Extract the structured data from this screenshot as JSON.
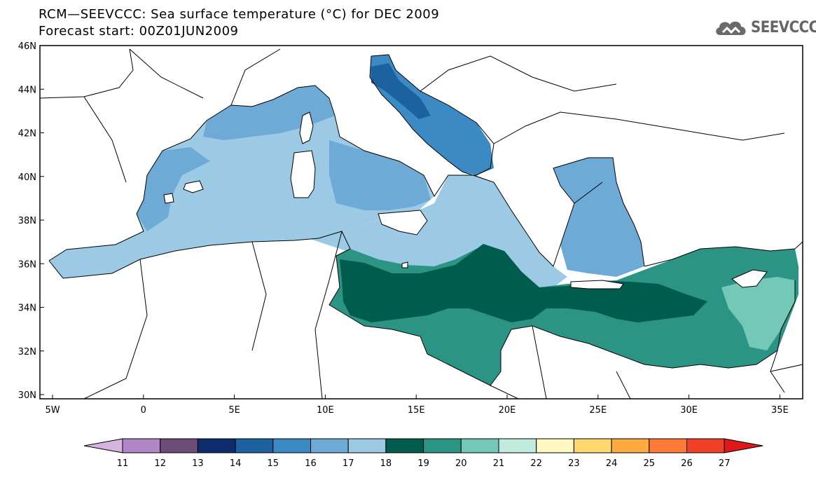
{
  "title": "RCM—SEEVCCC: Sea surface temperature (°C) for DEC 2009",
  "subtitle": "Forecast start: 00Z01JUN2009",
  "logo": {
    "text": "SEEVCCC",
    "icon": "cloud-icon"
  },
  "lat_labels": [
    "46N",
    "44N",
    "42N",
    "40N",
    "38N",
    "36N",
    "34N",
    "32N",
    "30N"
  ],
  "lon_labels": [
    "5W",
    "0",
    "5E",
    "10E",
    "15E",
    "20E",
    "25E",
    "30E",
    "35E"
  ],
  "colorbar": {
    "labels": [
      "11",
      "12",
      "13",
      "14",
      "15",
      "16",
      "17",
      "18",
      "19",
      "20",
      "21",
      "22",
      "23",
      "24",
      "25",
      "26",
      "27"
    ],
    "colors": [
      "#d6b4e0",
      "#b088c8",
      "#6e4c78",
      "#0c2c6c",
      "#1c62a0",
      "#3c8ac4",
      "#6eaad6",
      "#9ccae4",
      "#005c4c",
      "#2c9484",
      "#74c8b8",
      "#c0ece0",
      "#fff8c0",
      "#ffd870",
      "#ffaa40",
      "#ff7a38",
      "#f04028",
      "#e01818"
    ]
  },
  "map_regions": {
    "west": "#9ccae4",
    "ligurian": "#6eaad6",
    "adriatic_north": "#1c62a0",
    "adriatic": "#3c8ac4",
    "ionian": "#9ccae4",
    "east": "#2c9484",
    "libyan": "#005c4c",
    "levant": "#74c8b8",
    "aegean": "#6eaad6"
  }
}
